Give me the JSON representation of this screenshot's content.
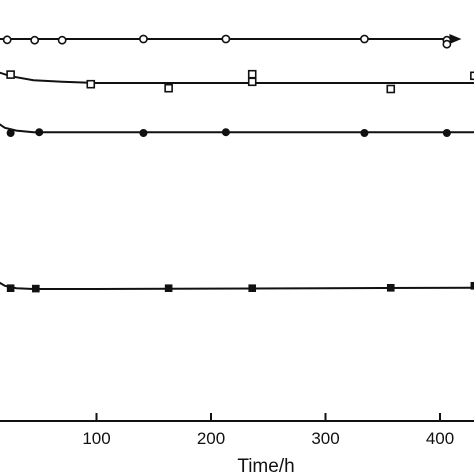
{
  "chart_data": {
    "type": "scatter",
    "title": "",
    "xlabel": "Time/h",
    "ylabel": "",
    "xlim": [
      0,
      430
    ],
    "x_ticks": [
      100,
      200,
      300,
      400
    ],
    "grid": false,
    "legend": "none",
    "series": [
      {
        "marker": "open-circle",
        "x": [
          22,
          46,
          70,
          141,
          213,
          334,
          406,
          406
        ],
        "y": [
          0.953,
          0.952,
          0.952,
          0.955,
          0.955,
          0.955,
          0.952,
          0.942
        ],
        "curve_x": [
          0,
          410
        ],
        "curve_y": [
          0.955,
          0.955
        ]
      },
      {
        "marker": "open-square",
        "x": [
          25,
          95,
          163,
          236,
          236,
          357,
          430
        ],
        "y": [
          0.866,
          0.842,
          0.832,
          0.867,
          0.848,
          0.83,
          0.863
        ],
        "curve_x": [
          0,
          10,
          25,
          45,
          70,
          100,
          200,
          300,
          430
        ],
        "curve_y": [
          0.895,
          0.876,
          0.862,
          0.852,
          0.848,
          0.845,
          0.845,
          0.845,
          0.845
        ]
      },
      {
        "marker": "filled-circle",
        "x": [
          25,
          50,
          141,
          213,
          334,
          406
        ],
        "y": [
          0.72,
          0.722,
          0.72,
          0.722,
          0.72,
          0.72
        ],
        "curve_x": [
          0,
          10,
          20,
          30,
          45,
          100,
          200,
          300,
          430
        ],
        "curve_y": [
          0.775,
          0.752,
          0.733,
          0.726,
          0.722,
          0.722,
          0.722,
          0.722,
          0.722
        ]
      },
      {
        "marker": "filled-square",
        "x": [
          25,
          47,
          163,
          236,
          357,
          430
        ],
        "y": [
          0.332,
          0.331,
          0.332,
          0.332,
          0.333,
          0.338
        ],
        "curve_x": [
          0,
          10,
          20,
          30,
          45,
          100,
          200,
          300,
          430
        ],
        "curve_y": [
          0.39,
          0.355,
          0.338,
          0.332,
          0.33,
          0.33,
          0.331,
          0.332,
          0.333
        ]
      }
    ]
  }
}
